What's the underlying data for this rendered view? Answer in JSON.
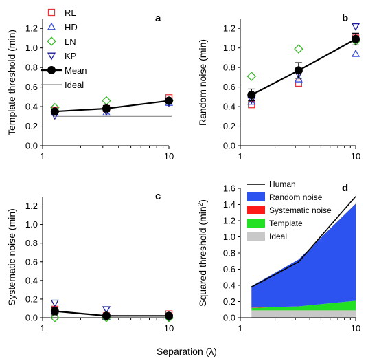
{
  "figure": {
    "xlabel": "Separation (λ)"
  },
  "chart_data": [
    {
      "panel": "a",
      "type": "scatter",
      "ylabel": "Template threshold (min)",
      "xscale": "log",
      "xlim": [
        1,
        10
      ],
      "ylim": [
        0,
        1.3
      ],
      "xticks": [
        1,
        10
      ],
      "yticks": [
        0,
        0.2,
        0.4,
        0.6,
        0.8,
        1.0,
        1.2
      ],
      "ytick_labels": [
        "0.0",
        "0.2",
        "0.4",
        "0.6",
        "0.8",
        "1.0",
        "1.2"
      ],
      "x": [
        1.25,
        3.2,
        10
      ],
      "legend_position": "top-left",
      "series": [
        {
          "name": "RL",
          "marker": "square",
          "color": "#e8343c",
          "values": [
            0.36,
            0.38,
            0.49
          ]
        },
        {
          "name": "HD",
          "marker": "triangle-up",
          "color": "#3a52d8",
          "values": [
            0.34,
            0.34,
            0.44
          ]
        },
        {
          "name": "LN",
          "marker": "diamond",
          "color": "#3cb82c",
          "values": [
            0.39,
            0.46,
            0.46
          ]
        },
        {
          "name": "KP",
          "marker": "triangle-down",
          "color": "#1c1c9c",
          "values": [
            0.31,
            0.35,
            0.44
          ]
        },
        {
          "name": "Mean",
          "marker": "circle",
          "color": "#000000",
          "values": [
            0.35,
            0.38,
            0.46
          ],
          "errors": [
            0.02,
            0.03,
            0.02
          ]
        },
        {
          "name": "Ideal",
          "line": true,
          "color": "#888888",
          "values": [
            0.3,
            0.3,
            0.3
          ]
        }
      ]
    },
    {
      "panel": "b",
      "type": "scatter",
      "ylabel": "Random noise (min)",
      "xscale": "log",
      "xlim": [
        1,
        10
      ],
      "ylim": [
        0,
        1.3
      ],
      "xticks": [
        1,
        10
      ],
      "yticks": [
        0,
        0.2,
        0.4,
        0.6,
        0.8,
        1.0,
        1.2
      ],
      "ytick_labels": [
        "0.0",
        "0.2",
        "0.4",
        "0.6",
        "0.8",
        "1.0",
        "1.2"
      ],
      "x": [
        1.25,
        3.2,
        10
      ],
      "series": [
        {
          "name": "RL",
          "marker": "square",
          "color": "#e8343c",
          "values": [
            0.42,
            0.64,
            1.1
          ]
        },
        {
          "name": "HD",
          "marker": "triangle-up",
          "color": "#3a52d8",
          "values": [
            0.45,
            0.68,
            0.94
          ]
        },
        {
          "name": "LN",
          "marker": "diamond",
          "color": "#3cb82c",
          "values": [
            0.71,
            0.99,
            1.07
          ]
        },
        {
          "name": "KP",
          "marker": "triangle-down",
          "color": "#1c1c9c",
          "values": [
            0.47,
            0.73,
            1.22
          ]
        },
        {
          "name": "Mean",
          "marker": "circle",
          "color": "#000000",
          "values": [
            0.52,
            0.77,
            1.09
          ],
          "errors": [
            0.06,
            0.08,
            0.06
          ]
        }
      ]
    },
    {
      "panel": "c",
      "type": "scatter",
      "ylabel": "Systematic noise (min)",
      "xscale": "log",
      "xlim": [
        1,
        10
      ],
      "ylim": [
        0,
        1.3
      ],
      "xticks": [
        1,
        10
      ],
      "yticks": [
        0,
        0.2,
        0.4,
        0.6,
        0.8,
        1.0,
        1.2
      ],
      "ytick_labels": [
        "0.0",
        "0.2",
        "0.4",
        "0.6",
        "0.8",
        "1.0",
        "1.2"
      ],
      "x": [
        1.25,
        3.2,
        10
      ],
      "series": [
        {
          "name": "RL",
          "marker": "square",
          "color": "#e8343c",
          "values": [
            0.09,
            0.02,
            0.04
          ]
        },
        {
          "name": "HD",
          "marker": "triangle-up",
          "color": "#3a52d8",
          "values": [
            0.08,
            0.01,
            0.02
          ]
        },
        {
          "name": "LN",
          "marker": "diamond",
          "color": "#3cb82c",
          "values": [
            0.0,
            0.0,
            0.0
          ]
        },
        {
          "name": "KP",
          "marker": "triangle-down",
          "color": "#1c1c9c",
          "values": [
            0.16,
            0.09,
            0.01
          ]
        },
        {
          "name": "Mean",
          "marker": "circle",
          "color": "#000000",
          "values": [
            0.07,
            0.02,
            0.02
          ],
          "errors": [
            0.04,
            0.02,
            0.01
          ]
        }
      ]
    },
    {
      "panel": "d",
      "type": "area",
      "ylabel": "Squared threshold (min²)",
      "xscale": "log",
      "xlim": [
        1,
        10
      ],
      "ylim": [
        0,
        1.6
      ],
      "xticks": [
        1,
        10
      ],
      "yticks": [
        0,
        0.2,
        0.4,
        0.6,
        0.8,
        1.0,
        1.2,
        1.4,
        1.6
      ],
      "ytick_labels": [
        "0.0",
        "0.2",
        "0.4",
        "0.6",
        "0.8",
        "1.0",
        "1.2",
        "1.4",
        "1.6"
      ],
      "x": [
        1.25,
        3.2,
        10
      ],
      "legend_position": "top-left",
      "stacked": true,
      "series": [
        {
          "name": "Ideal",
          "color": "#c8c8c8",
          "values": [
            0.09,
            0.09,
            0.09
          ]
        },
        {
          "name": "Template",
          "color": "#22e022",
          "values": [
            0.03,
            0.05,
            0.12
          ]
        },
        {
          "name": "Systematic noise",
          "color": "#ff1a1a",
          "values": [
            0.005,
            0.0,
            0.0
          ]
        },
        {
          "name": "Random noise",
          "color": "#2c52f0",
          "values": [
            0.265,
            0.58,
            1.2
          ]
        }
      ],
      "lines": [
        {
          "name": "Human",
          "color": "#000000",
          "values": [
            0.38,
            0.69,
            1.5
          ]
        }
      ]
    }
  ]
}
